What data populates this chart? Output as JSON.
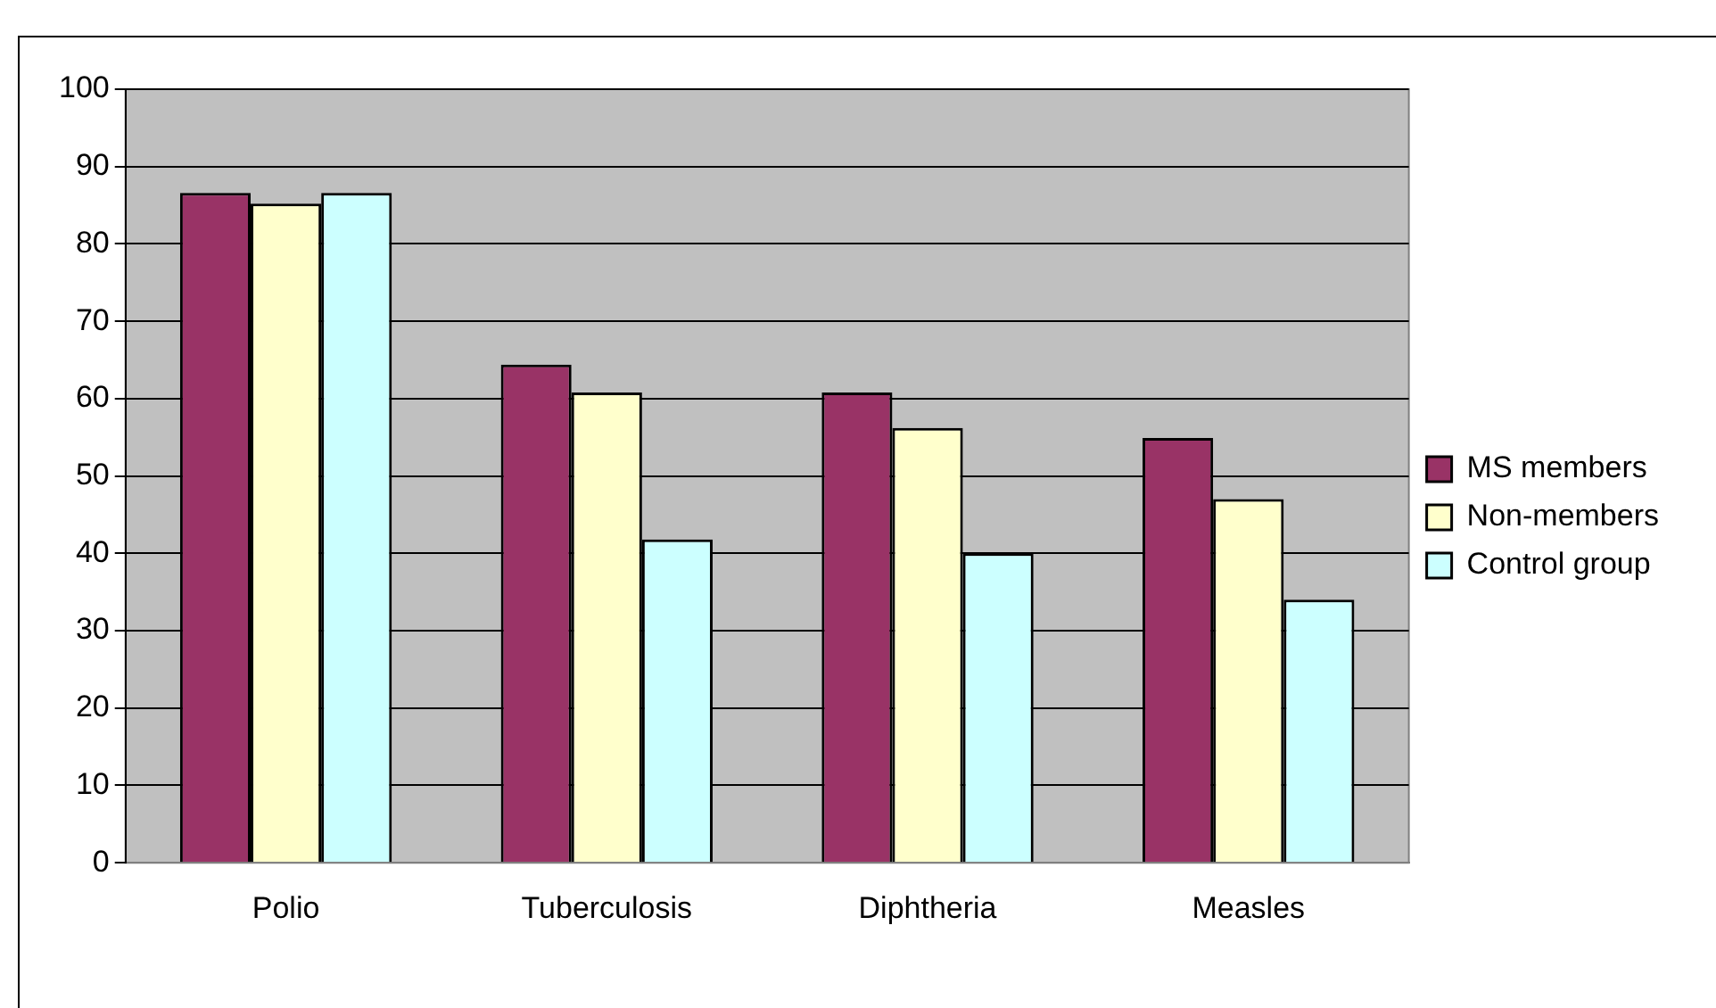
{
  "chart_data": {
    "type": "bar",
    "categories": [
      "Polio",
      "Tuberculosis",
      "Diphtheria",
      "Measles"
    ],
    "series": [
      {
        "name": "MS members",
        "color": "#993366",
        "values": [
          86.6,
          64.4,
          60.8,
          54.9
        ]
      },
      {
        "name": "Non-members",
        "color": "#ffffcc",
        "values": [
          85.2,
          60.8,
          56.2,
          47
        ]
      },
      {
        "name": "Control group",
        "color": "#ccffff",
        "values": [
          86.6,
          41.8,
          40,
          34
        ]
      }
    ],
    "ylim": [
      0,
      100
    ],
    "yticks": [
      0,
      10,
      20,
      30,
      40,
      50,
      60,
      70,
      80,
      90,
      100
    ],
    "grid": "y",
    "legend": "right"
  }
}
